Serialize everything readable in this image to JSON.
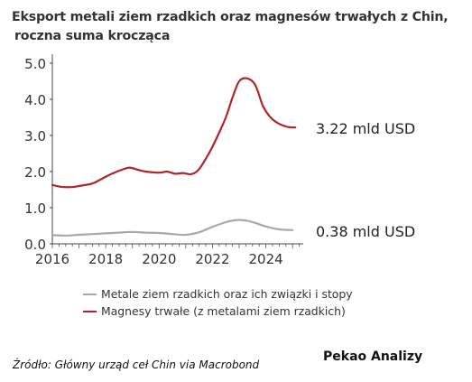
{
  "title_lines": [
    "Eksport metali ziem rzadkich oraz magnesów trwałych z Chin,",
    "roczna suma krocząca"
  ],
  "source": "Źródło: Główny urząd ceł Chin via Macrobond",
  "brand": "Pekao Analizy",
  "chart_data": {
    "type": "line",
    "title": "Eksport metali ziem rzadkich oraz magnesów trwałych z Chin, roczna suma krocząca",
    "xlim": [
      2016,
      2025.4
    ],
    "ylim": [
      0,
      5.2
    ],
    "xticks": [
      2016,
      2018,
      2020,
      2022,
      2024
    ],
    "xtick_labels": [
      "2016",
      "2018",
      "2020",
      "2022",
      "2024"
    ],
    "yticks": [
      0,
      1,
      2,
      3,
      4,
      5
    ],
    "ytick_labels": [
      "0.0",
      "1.0",
      "2.0",
      "3.0",
      "4.0",
      "5.0"
    ],
    "grid": false,
    "legend_position": "bottom",
    "series": [
      {
        "name": "Metale ziem rzadkich oraz ich związki i stopy",
        "color": "#a8a8a8",
        "end_label": "0.38 mld USD",
        "x": [
          2016.0,
          2016.5,
          2017.0,
          2017.5,
          2018.0,
          2018.5,
          2019.0,
          2019.5,
          2020.0,
          2020.5,
          2021.0,
          2021.5,
          2022.0,
          2022.5,
          2022.8,
          2023.0,
          2023.3,
          2023.6,
          2024.0,
          2024.5,
          2025.0
        ],
        "y": [
          0.24,
          0.23,
          0.25,
          0.27,
          0.29,
          0.31,
          0.33,
          0.31,
          0.3,
          0.27,
          0.25,
          0.32,
          0.47,
          0.6,
          0.65,
          0.66,
          0.64,
          0.58,
          0.48,
          0.4,
          0.38
        ]
      },
      {
        "name": "Magnesy trwałe (z metalami ziem rzadkich)",
        "color": "#b0252a",
        "end_label": "3.22 mld USD",
        "x": [
          2016.0,
          2016.3,
          2016.7,
          2017.0,
          2017.5,
          2017.8,
          2018.2,
          2018.6,
          2018.9,
          2019.2,
          2019.5,
          2020.0,
          2020.3,
          2020.6,
          2020.9,
          2021.2,
          2021.5,
          2021.9,
          2022.2,
          2022.5,
          2022.75,
          2023.0,
          2023.3,
          2023.6,
          2023.9,
          2024.2,
          2024.5,
          2024.8,
          2025.1
        ],
        "y": [
          1.63,
          1.58,
          1.57,
          1.6,
          1.67,
          1.78,
          1.93,
          2.05,
          2.11,
          2.05,
          2.0,
          1.97,
          2.0,
          1.94,
          1.96,
          1.93,
          2.07,
          2.55,
          3.0,
          3.5,
          4.05,
          4.5,
          4.58,
          4.4,
          3.8,
          3.48,
          3.32,
          3.24,
          3.22
        ]
      }
    ]
  }
}
